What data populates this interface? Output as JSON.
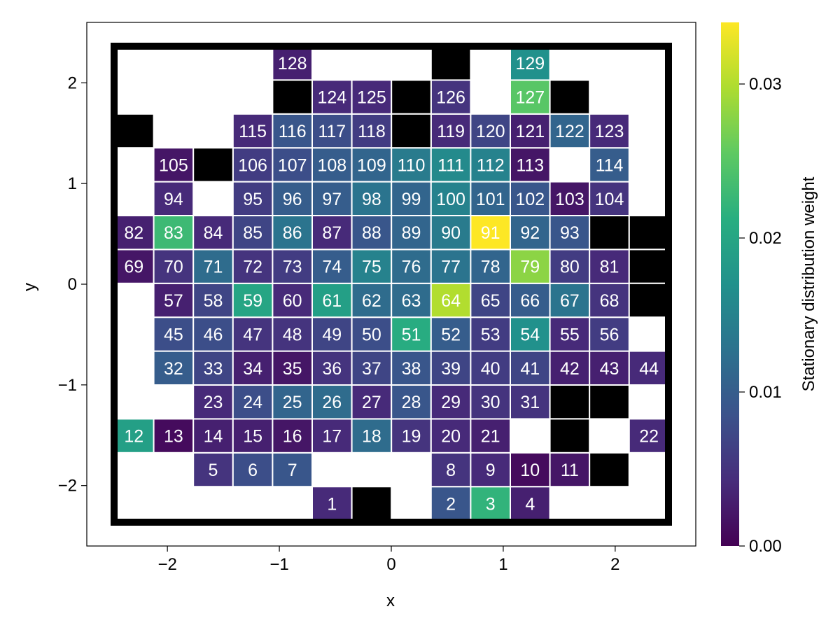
{
  "chart_data": {
    "type": "heatmap",
    "xlabel": "x",
    "ylabel": "y",
    "xlim": [
      -2.5,
      2.5
    ],
    "ylim": [
      -2.35,
      2.35
    ],
    "xticks": [
      -2,
      -1,
      0,
      1,
      2
    ],
    "xtick_labels": [
      "−2",
      "−1",
      "0",
      "1",
      "2"
    ],
    "yticks": [
      -2,
      -1,
      0,
      1,
      2
    ],
    "ytick_labels": [
      "−2",
      "−1",
      "0",
      "1",
      "2"
    ],
    "cell_width": 0.3571,
    "cell_height": 0.3133,
    "colormap": "viridis",
    "colorbar": {
      "label": "Stationary distribution weight",
      "range": [
        0,
        0.034
      ],
      "ticks": [
        0,
        0.01,
        0.02,
        0.03
      ],
      "tick_labels": [
        "0.00",
        "0.01",
        "0.02",
        "0.03"
      ]
    },
    "obstacle_color": "#000000",
    "boundary_color": "#000000",
    "states": [
      {
        "id": 1,
        "row": 13,
        "col": 8,
        "value": 0.004
      },
      {
        "id": 2,
        "row": 13,
        "col": 11,
        "value": 0.009
      },
      {
        "id": 3,
        "row": 13,
        "col": 12,
        "value": 0.022
      },
      {
        "id": 4,
        "row": 13,
        "col": 13,
        "value": 0.003
      },
      {
        "id": 5,
        "row": 12,
        "col": 5,
        "value": 0.005
      },
      {
        "id": 6,
        "row": 12,
        "col": 6,
        "value": 0.008
      },
      {
        "id": 7,
        "row": 12,
        "col": 7,
        "value": 0.009
      },
      {
        "id": 8,
        "row": 12,
        "col": 11,
        "value": 0.005
      },
      {
        "id": 9,
        "row": 12,
        "col": 12,
        "value": 0.004
      },
      {
        "id": 10,
        "row": 12,
        "col": 13,
        "value": 0.001
      },
      {
        "id": 11,
        "row": 12,
        "col": 14,
        "value": 0.002
      },
      {
        "id": 12,
        "row": 11,
        "col": 3,
        "value": 0.019
      },
      {
        "id": 13,
        "row": 11,
        "col": 4,
        "value": 0.001
      },
      {
        "id": 14,
        "row": 11,
        "col": 5,
        "value": 0.003
      },
      {
        "id": 15,
        "row": 11,
        "col": 6,
        "value": 0.003
      },
      {
        "id": 16,
        "row": 11,
        "col": 7,
        "value": 0.002
      },
      {
        "id": 17,
        "row": 11,
        "col": 8,
        "value": 0.004
      },
      {
        "id": 18,
        "row": 11,
        "col": 9,
        "value": 0.012
      },
      {
        "id": 19,
        "row": 11,
        "col": 10,
        "value": 0.005
      },
      {
        "id": 20,
        "row": 11,
        "col": 11,
        "value": 0.004
      },
      {
        "id": 21,
        "row": 11,
        "col": 12,
        "value": 0.003
      },
      {
        "id": 22,
        "row": 11,
        "col": 16,
        "value": 0.004
      },
      {
        "id": 23,
        "row": 10,
        "col": 5,
        "value": 0.004
      },
      {
        "id": 24,
        "row": 10,
        "col": 6,
        "value": 0.008
      },
      {
        "id": 25,
        "row": 10,
        "col": 7,
        "value": 0.011
      },
      {
        "id": 26,
        "row": 10,
        "col": 8,
        "value": 0.012
      },
      {
        "id": 27,
        "row": 10,
        "col": 9,
        "value": 0.004
      },
      {
        "id": 28,
        "row": 10,
        "col": 10,
        "value": 0.009
      },
      {
        "id": 29,
        "row": 10,
        "col": 11,
        "value": 0.004
      },
      {
        "id": 30,
        "row": 10,
        "col": 12,
        "value": 0.005
      },
      {
        "id": 31,
        "row": 10,
        "col": 13,
        "value": 0.005
      },
      {
        "id": 32,
        "row": 9,
        "col": 4,
        "value": 0.01
      },
      {
        "id": 33,
        "row": 9,
        "col": 5,
        "value": 0.007
      },
      {
        "id": 34,
        "row": 9,
        "col": 6,
        "value": 0.003
      },
      {
        "id": 35,
        "row": 9,
        "col": 7,
        "value": 0.002
      },
      {
        "id": 36,
        "row": 9,
        "col": 8,
        "value": 0.005
      },
      {
        "id": 37,
        "row": 9,
        "col": 9,
        "value": 0.007
      },
      {
        "id": 38,
        "row": 9,
        "col": 10,
        "value": 0.009
      },
      {
        "id": 39,
        "row": 9,
        "col": 11,
        "value": 0.007
      },
      {
        "id": 40,
        "row": 9,
        "col": 12,
        "value": 0.006
      },
      {
        "id": 41,
        "row": 9,
        "col": 13,
        "value": 0.007
      },
      {
        "id": 42,
        "row": 9,
        "col": 14,
        "value": 0.003
      },
      {
        "id": 43,
        "row": 9,
        "col": 15,
        "value": 0.003
      },
      {
        "id": 44,
        "row": 9,
        "col": 16,
        "value": 0.004
      },
      {
        "id": 45,
        "row": 8,
        "col": 4,
        "value": 0.008
      },
      {
        "id": 46,
        "row": 8,
        "col": 5,
        "value": 0.008
      },
      {
        "id": 47,
        "row": 8,
        "col": 6,
        "value": 0.005
      },
      {
        "id": 48,
        "row": 8,
        "col": 7,
        "value": 0.005
      },
      {
        "id": 49,
        "row": 8,
        "col": 8,
        "value": 0.007
      },
      {
        "id": 50,
        "row": 8,
        "col": 9,
        "value": 0.008
      },
      {
        "id": 51,
        "row": 8,
        "col": 10,
        "value": 0.021
      },
      {
        "id": 52,
        "row": 8,
        "col": 11,
        "value": 0.01
      },
      {
        "id": 53,
        "row": 8,
        "col": 12,
        "value": 0.006
      },
      {
        "id": 54,
        "row": 8,
        "col": 13,
        "value": 0.017
      },
      {
        "id": 55,
        "row": 8,
        "col": 14,
        "value": 0.004
      },
      {
        "id": 56,
        "row": 8,
        "col": 15,
        "value": 0.006
      },
      {
        "id": 57,
        "row": 7,
        "col": 4,
        "value": 0.003
      },
      {
        "id": 58,
        "row": 7,
        "col": 5,
        "value": 0.007
      },
      {
        "id": 59,
        "row": 7,
        "col": 6,
        "value": 0.02
      },
      {
        "id": 60,
        "row": 7,
        "col": 7,
        "value": 0.004
      },
      {
        "id": 61,
        "row": 7,
        "col": 8,
        "value": 0.019
      },
      {
        "id": 62,
        "row": 7,
        "col": 9,
        "value": 0.012
      },
      {
        "id": 63,
        "row": 7,
        "col": 10,
        "value": 0.012
      },
      {
        "id": 64,
        "row": 7,
        "col": 11,
        "value": 0.03
      },
      {
        "id": 65,
        "row": 7,
        "col": 12,
        "value": 0.007
      },
      {
        "id": 66,
        "row": 7,
        "col": 13,
        "value": 0.01
      },
      {
        "id": 67,
        "row": 7,
        "col": 14,
        "value": 0.013
      },
      {
        "id": 68,
        "row": 7,
        "col": 15,
        "value": 0.005
      },
      {
        "id": 69,
        "row": 6,
        "col": 3,
        "value": 0.002
      },
      {
        "id": 70,
        "row": 6,
        "col": 4,
        "value": 0.005
      },
      {
        "id": 71,
        "row": 6,
        "col": 5,
        "value": 0.012
      },
      {
        "id": 72,
        "row": 6,
        "col": 6,
        "value": 0.005
      },
      {
        "id": 73,
        "row": 6,
        "col": 7,
        "value": 0.006
      },
      {
        "id": 74,
        "row": 6,
        "col": 8,
        "value": 0.01
      },
      {
        "id": 75,
        "row": 6,
        "col": 9,
        "value": 0.015
      },
      {
        "id": 76,
        "row": 6,
        "col": 10,
        "value": 0.012
      },
      {
        "id": 77,
        "row": 6,
        "col": 11,
        "value": 0.013
      },
      {
        "id": 78,
        "row": 6,
        "col": 12,
        "value": 0.011
      },
      {
        "id": 79,
        "row": 6,
        "col": 13,
        "value": 0.028
      },
      {
        "id": 80,
        "row": 6,
        "col": 14,
        "value": 0.006
      },
      {
        "id": 81,
        "row": 6,
        "col": 15,
        "value": 0.004
      },
      {
        "id": 82,
        "row": 5,
        "col": 3,
        "value": 0.003
      },
      {
        "id": 83,
        "row": 5,
        "col": 4,
        "value": 0.023
      },
      {
        "id": 84,
        "row": 5,
        "col": 5,
        "value": 0.004
      },
      {
        "id": 85,
        "row": 5,
        "col": 6,
        "value": 0.007
      },
      {
        "id": 86,
        "row": 5,
        "col": 7,
        "value": 0.013
      },
      {
        "id": 87,
        "row": 5,
        "col": 8,
        "value": 0.004
      },
      {
        "id": 88,
        "row": 5,
        "col": 9,
        "value": 0.009
      },
      {
        "id": 89,
        "row": 5,
        "col": 10,
        "value": 0.011
      },
      {
        "id": 90,
        "row": 5,
        "col": 11,
        "value": 0.014
      },
      {
        "id": 91,
        "row": 5,
        "col": 12,
        "value": 0.034
      },
      {
        "id": 92,
        "row": 5,
        "col": 13,
        "value": 0.011
      },
      {
        "id": 93,
        "row": 5,
        "col": 14,
        "value": 0.009
      },
      {
        "id": 94,
        "row": 4,
        "col": 4,
        "value": 0.004
      },
      {
        "id": 95,
        "row": 4,
        "col": 6,
        "value": 0.006
      },
      {
        "id": 96,
        "row": 4,
        "col": 7,
        "value": 0.01
      },
      {
        "id": 97,
        "row": 4,
        "col": 8,
        "value": 0.01
      },
      {
        "id": 98,
        "row": 4,
        "col": 9,
        "value": 0.013
      },
      {
        "id": 99,
        "row": 4,
        "col": 10,
        "value": 0.011
      },
      {
        "id": 100,
        "row": 4,
        "col": 11,
        "value": 0.015
      },
      {
        "id": 101,
        "row": 4,
        "col": 12,
        "value": 0.011
      },
      {
        "id": 102,
        "row": 4,
        "col": 13,
        "value": 0.009
      },
      {
        "id": 103,
        "row": 4,
        "col": 14,
        "value": 0.002
      },
      {
        "id": 104,
        "row": 4,
        "col": 15,
        "value": 0.005
      },
      {
        "id": 105,
        "row": 3,
        "col": 4,
        "value": 0.002
      },
      {
        "id": 106,
        "row": 3,
        "col": 6,
        "value": 0.006
      },
      {
        "id": 107,
        "row": 3,
        "col": 7,
        "value": 0.008
      },
      {
        "id": 108,
        "row": 3,
        "col": 8,
        "value": 0.01
      },
      {
        "id": 109,
        "row": 3,
        "col": 9,
        "value": 0.011
      },
      {
        "id": 110,
        "row": 3,
        "col": 10,
        "value": 0.014
      },
      {
        "id": 111,
        "row": 3,
        "col": 11,
        "value": 0.016
      },
      {
        "id": 112,
        "row": 3,
        "col": 12,
        "value": 0.015
      },
      {
        "id": 113,
        "row": 3,
        "col": 13,
        "value": 0.002
      },
      {
        "id": 114,
        "row": 3,
        "col": 15,
        "value": 0.01
      },
      {
        "id": 115,
        "row": 2,
        "col": 6,
        "value": 0.004
      },
      {
        "id": 116,
        "row": 2,
        "col": 7,
        "value": 0.009
      },
      {
        "id": 117,
        "row": 2,
        "col": 8,
        "value": 0.008
      },
      {
        "id": 118,
        "row": 2,
        "col": 9,
        "value": 0.006
      },
      {
        "id": 119,
        "row": 2,
        "col": 11,
        "value": 0.004
      },
      {
        "id": 120,
        "row": 2,
        "col": 12,
        "value": 0.007
      },
      {
        "id": 121,
        "row": 2,
        "col": 13,
        "value": 0.003
      },
      {
        "id": 122,
        "row": 2,
        "col": 14,
        "value": 0.011
      },
      {
        "id": 123,
        "row": 2,
        "col": 15,
        "value": 0.004
      },
      {
        "id": 124,
        "row": 1,
        "col": 8,
        "value": 0.004
      },
      {
        "id": 125,
        "row": 1,
        "col": 9,
        "value": 0.004
      },
      {
        "id": 126,
        "row": 1,
        "col": 11,
        "value": 0.005
      },
      {
        "id": 127,
        "row": 1,
        "col": 13,
        "value": 0.025
      },
      {
        "id": 128,
        "row": 0,
        "col": 7,
        "value": 0.003
      },
      {
        "id": 129,
        "row": 0,
        "col": 13,
        "value": 0.017
      }
    ],
    "obstacles": [
      {
        "row": 0,
        "col": 11
      },
      {
        "row": 1,
        "col": 7
      },
      {
        "row": 1,
        "col": 10
      },
      {
        "row": 1,
        "col": 14
      },
      {
        "row": 2,
        "col": 3
      },
      {
        "row": 2,
        "col": 10
      },
      {
        "row": 3,
        "col": 5
      },
      {
        "row": 5,
        "col": 15
      },
      {
        "row": 5,
        "col": 16
      },
      {
        "row": 6,
        "col": 16
      },
      {
        "row": 7,
        "col": 16
      },
      {
        "row": 10,
        "col": 14
      },
      {
        "row": 10,
        "col": 15
      },
      {
        "row": 11,
        "col": 14
      },
      {
        "row": 12,
        "col": 15
      },
      {
        "row": 13,
        "col": 9
      }
    ]
  }
}
